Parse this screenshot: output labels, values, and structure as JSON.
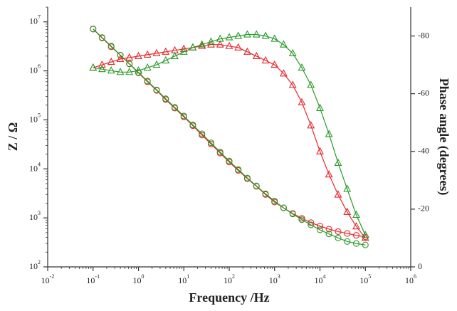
{
  "chart_data": {
    "type": "line",
    "log_x": true,
    "log_y": true,
    "xlabel": "Frequency /Hz",
    "ylabel": "Z / Ω",
    "y2label": "Phase angle (degrees)",
    "x": [
      0.1,
      0.158,
      0.251,
      0.398,
      0.631,
      1,
      1.58,
      2.51,
      3.98,
      6.31,
      10,
      15.8,
      25.1,
      39.8,
      63.1,
      100,
      158,
      251,
      398,
      631,
      1000,
      1580,
      2510,
      3980,
      6310,
      10000,
      15800,
      25100,
      39800,
      63100,
      100000
    ],
    "series": [
      {
        "color": "#e8262a",
        "marker": "circle",
        "values": [
          7100000,
          4700000,
          3100000,
          2100000,
          1380000,
          910000,
          600000,
          400000,
          260000,
          174000,
          115000,
          76000,
          49000,
          32000,
          21000,
          13800,
          9300,
          6300,
          4400,
          3000,
          2100,
          1600,
          1230,
          980,
          800,
          680,
          590,
          525,
          480,
          440,
          410
        ]
      },
      {
        "color": "#2a9a2a",
        "marker": "circle",
        "values": [
          7200000,
          4800000,
          3200000,
          2100000,
          1400000,
          930000,
          620000,
          410000,
          270000,
          180000,
          120000,
          79000,
          52000,
          34000,
          22000,
          14500,
          9700,
          6500,
          4500,
          3100,
          2200,
          1600,
          1200,
          920,
          720,
          570,
          470,
          390,
          330,
          300,
          280
        ]
      },
      {
        "color": "#e8262a",
        "marker": "triangle",
        "axis": "y2",
        "values": [
          -69,
          -70,
          -71,
          -72,
          -72.5,
          -73,
          -73.5,
          -74,
          -74.5,
          -75,
          -75.5,
          -76,
          -76.5,
          -77,
          -77,
          -76.5,
          -76,
          -74.5,
          -73,
          -71.5,
          -70,
          -67,
          -63,
          -57,
          -49,
          -40,
          -32,
          -25,
          -19,
          -14,
          -10
        ]
      },
      {
        "color": "#2a9a2a",
        "marker": "triangle",
        "axis": "y2",
        "values": [
          -69,
          -68.5,
          -68,
          -67.5,
          -67.5,
          -68,
          -69,
          -70,
          -71.5,
          -73,
          -74.5,
          -76,
          -77,
          -78,
          -79,
          -79.5,
          -80,
          -80.5,
          -80.5,
          -80,
          -79,
          -77,
          -74,
          -69,
          -63,
          -55,
          -46,
          -36,
          -27,
          -18,
          -11
        ]
      }
    ],
    "xlim": [
      0.01,
      1000000
    ],
    "xticks": [
      {
        "value": 0.01,
        "label": "10",
        "exponent": "-2"
      },
      {
        "value": 0.1,
        "label": "10",
        "exponent": "-1"
      },
      {
        "value": 1,
        "label": "10",
        "exponent": "0"
      },
      {
        "value": 10,
        "label": "10",
        "exponent": "1"
      },
      {
        "value": 100,
        "label": "10",
        "exponent": "2"
      },
      {
        "value": 1000,
        "label": "10",
        "exponent": "3"
      },
      {
        "value": 10000,
        "label": "10",
        "exponent": "4"
      },
      {
        "value": 100000,
        "label": "10",
        "exponent": "5"
      },
      {
        "value": 1000000,
        "label": "10",
        "exponent": "6"
      }
    ],
    "ylim": [
      100,
      20000000
    ],
    "yticks": [
      {
        "value": 100,
        "label": "10",
        "exponent": "2"
      },
      {
        "value": 1000,
        "label": "10",
        "exponent": "3"
      },
      {
        "value": 10000,
        "label": "10",
        "exponent": "4"
      },
      {
        "value": 100000,
        "label": "10",
        "exponent": "5"
      },
      {
        "value": 1000000,
        "label": "10",
        "exponent": "6"
      },
      {
        "value": 10000000,
        "label": "10",
        "exponent": "7"
      }
    ],
    "y2lim": [
      0,
      -90
    ],
    "y2ticks": [
      0,
      -20,
      -40,
      -60,
      -80
    ]
  }
}
